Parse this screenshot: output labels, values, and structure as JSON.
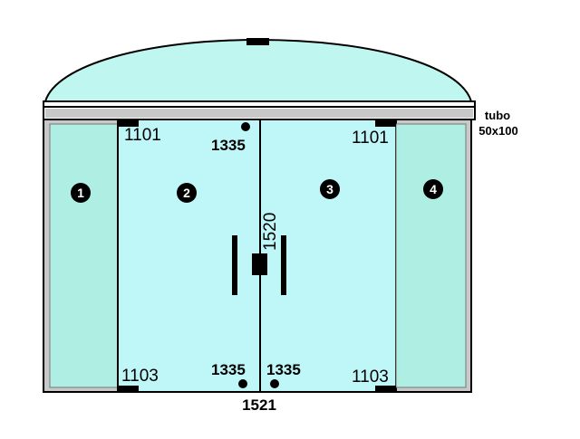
{
  "colors": {
    "glass_fixed": "#aeeee3",
    "glass_door": "#bff6f8",
    "dome": "#bff6f0",
    "outline": "#000000",
    "frame": "#c8c8c8",
    "hardware": "#000000"
  },
  "annotations": {
    "tube_label_line1": "tubo",
    "tube_label_line2": "50x100",
    "hinge_top_left": "1101",
    "hinge_top_right": "1101",
    "hinge_bottom_left": "1103",
    "hinge_bottom_right": "1103",
    "lock_top": "1335",
    "lock_bottom_left": "1335",
    "lock_bottom_right": "1335",
    "handle_code": "1520",
    "floor_lock_code": "1521"
  },
  "panels": [
    {
      "number": "1",
      "role": "fixed"
    },
    {
      "number": "2",
      "role": "door"
    },
    {
      "number": "3",
      "role": "door"
    },
    {
      "number": "4",
      "role": "fixed"
    }
  ]
}
